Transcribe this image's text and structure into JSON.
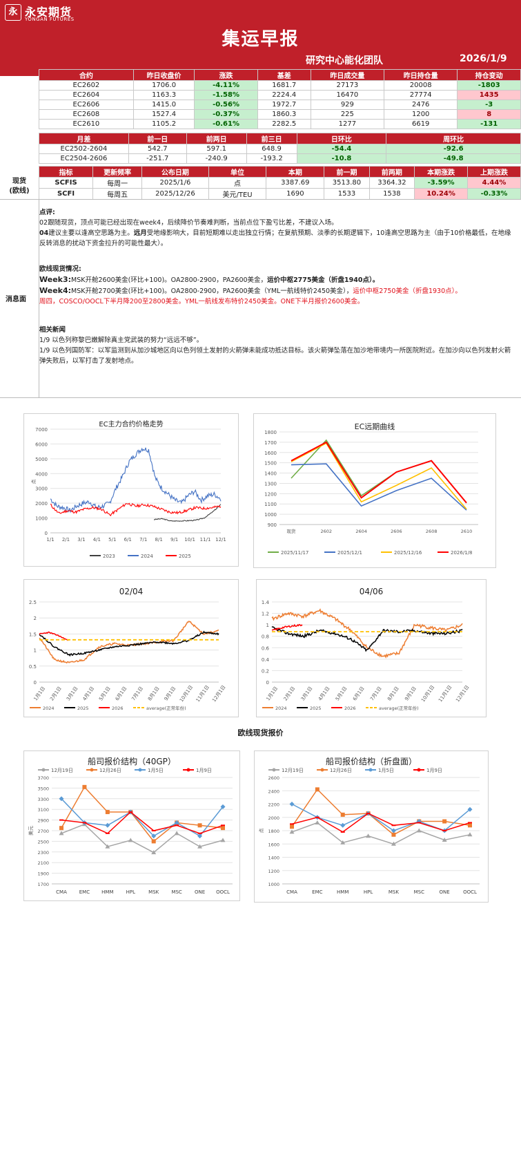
{
  "header": {
    "logo_char": "永",
    "brand_cn": "永安期货",
    "brand_en": "YONGAN FUTURES",
    "title": "集运早报",
    "team": "研究中心能化团队",
    "date": "2026/1/9"
  },
  "contracts": {
    "headers": [
      "合约",
      "昨日收盘价",
      "涨跌",
      "基差",
      "昨日成交量",
      "昨日持仓量",
      "持仓变动"
    ],
    "rows": [
      [
        "EC2602",
        "1706.0",
        "-4.11%",
        "1681.7",
        "27173",
        "20008",
        "-1803"
      ],
      [
        "EC2604",
        "1163.3",
        "-1.58%",
        "2224.4",
        "16470",
        "27774",
        "1435"
      ],
      [
        "EC2606",
        "1415.0",
        "-0.56%",
        "1972.7",
        "929",
        "2476",
        "-3"
      ],
      [
        "EC2608",
        "1527.4",
        "-0.37%",
        "1860.3",
        "225",
        "1200",
        "8"
      ],
      [
        "EC2610",
        "1105.2",
        "-0.61%",
        "2282.5",
        "1277",
        "6619",
        "-131"
      ]
    ]
  },
  "spreads": {
    "headers": [
      "月差",
      "前一日",
      "前两日",
      "前三日",
      "日环比",
      "周环比"
    ],
    "rows": [
      [
        "EC2502-2604",
        "542.7",
        "597.1",
        "648.9",
        "-54.4",
        "-92.6"
      ],
      [
        "EC2504-2606",
        "-251.7",
        "-240.9",
        "-193.2",
        "-10.8",
        "-49.8"
      ]
    ]
  },
  "spot": {
    "side1": "现货",
    "side2": "(欧线)",
    "headers": [
      "指标",
      "更新频率",
      "公布日期",
      "单位",
      "本期",
      "前一期",
      "前两期",
      "本期涨跌",
      "上期涨跌"
    ],
    "rows": [
      [
        "SCFIS",
        "每周一",
        "2025/1/6",
        "点",
        "3387.69",
        "3513.80",
        "3364.32",
        "-3.59%",
        "4.44%"
      ],
      [
        "SCFI",
        "每周五",
        "2025/12/26",
        "美元/TEU",
        "1690",
        "1533",
        "1538",
        "10.24%",
        "-0.33%"
      ]
    ]
  },
  "news": {
    "side": "消息面",
    "comment_title": "点评:",
    "c1": "02跟随现货，顶点可能已经出现在week4，后续降价节奏难判断，当前点位下盈亏比差，不建议入场。",
    "c2a": "04",
    "c2b": "建议主要以逢高空思路为主。",
    "c2c": "远月",
    "c2d": "受地缘影响大，目前短期难以走出独立行情；在复航预期、淡季的长期逻辑下，10逢高空思路为主（由于10价格最低，在地缘反转消息的扰动下资金拉升的可能性最大）。",
    "spot_title": "欧线现货情况:",
    "w3a": "Week3:",
    "w3b": "MSK开舱2600美金(环比+100)。OA2800-2900，PA2600美金，",
    "w3c": "运价中枢2775美金（折盘1940点）。",
    "w4a": "Week4:",
    "w4b": "MSK开舱2700美金(环比+100)。OA2800-2900，PA2600美金（YML一航线特价2450美金），",
    "w4c": "运价中枢2750美金（折盘1930点）。",
    "w4d": "周四，COSCO/OOCL下半月降200至2800美金。YML一航线发布特价2450美金。ONE下半月报价2600美金。",
    "rel_title": "相关新闻",
    "n1": "1/9 以色列称黎巴嫩解除真主党武装的努力“远远不够”。",
    "n2": "1/9 以色列国防军：以军监测到从加沙城地区向以色列领土发射的火箭弹未能成功抵达目标。该火箭弹坠落在加沙地带境内一所医院附近。在加沙向以色列发射火箭弹失败后，以军打击了发射地点。"
  },
  "section2": "欧线现货报价",
  "chart_data": [
    {
      "type": "line",
      "title": "EC主力合约价格走势",
      "ylabel": "点",
      "ylim": [
        0,
        7000
      ],
      "yticks": [
        "7000",
        "6000",
        "5000",
        "4000",
        "3000",
        "2000",
        "1000",
        "0"
      ],
      "xticks": [
        "1/1",
        "2/1",
        "3/1",
        "4/1",
        "5/1",
        "6/1",
        "7/1",
        "8/1",
        "9/1",
        "10/1",
        "11/1",
        "12/1"
      ],
      "series": [
        {
          "name": "2023",
          "color": "#404040"
        },
        {
          "name": "2024",
          "color": "#4472c4"
        },
        {
          "name": "2025",
          "color": "#ff0000"
        }
      ]
    },
    {
      "type": "line",
      "title": "EC远期曲线",
      "ylim": [
        900,
        1800
      ],
      "yticks": [
        "1800",
        "1700",
        "1600",
        "1500",
        "1400",
        "1300",
        "1200",
        "1100",
        "1000",
        "900"
      ],
      "categories": [
        "现货",
        "2602",
        "2604",
        "2606",
        "2608",
        "2610"
      ],
      "series": [
        {
          "name": "2025/11/17",
          "color": "#70ad47",
          "values": [
            1350,
            1720,
            1180,
            1410,
            1520,
            1110
          ]
        },
        {
          "name": "2025/12/1",
          "color": "#4472c4",
          "values": [
            1480,
            1490,
            1080,
            1230,
            1350,
            1040
          ]
        },
        {
          "name": "2025/12/16",
          "color": "#ffc000",
          "values": [
            1510,
            1690,
            1120,
            1280,
            1450,
            1050
          ]
        },
        {
          "name": "2026/1/8",
          "color": "#ff0000",
          "values": [
            1520,
            1700,
            1160,
            1410,
            1520,
            1110
          ]
        }
      ]
    },
    {
      "type": "line",
      "title": "02/04",
      "ylim": [
        0,
        2.5
      ],
      "yticks": [
        "2.5",
        "2",
        "1.5",
        "1",
        "0.5",
        "0"
      ],
      "xticks": [
        "1月1日",
        "2月1日",
        "3月1日",
        "4月1日",
        "5月1日",
        "6月1日",
        "7月1日",
        "8月1日",
        "9月1日",
        "10月1日",
        "11月1日",
        "12月1日"
      ],
      "series": [
        {
          "name": "2024",
          "color": "#ed7d31"
        },
        {
          "name": "2025",
          "color": "#000000"
        },
        {
          "name": "2026",
          "color": "#ff0000"
        },
        {
          "name": "average(正常年份)",
          "color": "#ffc000"
        }
      ]
    },
    {
      "type": "line",
      "title": "04/06",
      "ylim": [
        0,
        1.4
      ],
      "yticks": [
        "1.4",
        "1.2",
        "1",
        "0.8",
        "0.6",
        "0.4",
        "0.2",
        "0"
      ],
      "xticks": [
        "1月1日",
        "2月1日",
        "3月1日",
        "4月1日",
        "5月1日",
        "6月1日",
        "7月1日",
        "8月1日",
        "9月1日",
        "10月1日",
        "11月1日",
        "12月1日"
      ],
      "series": [
        {
          "name": "2024",
          "color": "#ed7d31"
        },
        {
          "name": "2025",
          "color": "#000000"
        },
        {
          "name": "2026",
          "color": "#ff0000"
        },
        {
          "name": "average(正常年份)",
          "color": "#ffc000"
        }
      ]
    },
    {
      "type": "line",
      "title": "船司报价结构（40GP）",
      "ylabel": "美元",
      "ylim": [
        1700,
        3700
      ],
      "yticks": [
        "3700",
        "3500",
        "3300",
        "3100",
        "2900",
        "2700",
        "2500",
        "2300",
        "2100",
        "1900",
        "1700"
      ],
      "categories": [
        "CMA",
        "EMC",
        "HMM",
        "HPL",
        "MSK",
        "MSC",
        "ONE",
        "OOCL"
      ],
      "series": [
        {
          "name": "12月19日",
          "color": "#a5a5a5",
          "values": [
            2650,
            2820,
            2400,
            2520,
            2290,
            2650,
            2400,
            2520
          ]
        },
        {
          "name": "12月26日",
          "color": "#ed7d31",
          "values": [
            2750,
            3520,
            3050,
            3050,
            2500,
            2850,
            2800,
            2750
          ]
        },
        {
          "name": "1月5日",
          "color": "#5b9bd5",
          "values": [
            3300,
            2850,
            2800,
            3050,
            2600,
            2850,
            2600,
            3150
          ]
        },
        {
          "name": "1月9日",
          "color": "#ff0000",
          "values": [
            2900,
            2850,
            2650,
            3050,
            2700,
            2800,
            2650,
            2800
          ]
        }
      ]
    },
    {
      "type": "line",
      "title": "船司报价结构（折盘面）",
      "ylabel": "点",
      "ylim": [
        1000,
        2600
      ],
      "yticks": [
        "2600",
        "2400",
        "2200",
        "2000",
        "1800",
        "1600",
        "1400",
        "1200",
        "1000"
      ],
      "categories": [
        "CMA",
        "EMC",
        "HMM",
        "HPL",
        "MSK",
        "MSC",
        "ONE",
        "OOCL"
      ],
      "series": [
        {
          "name": "12月19日",
          "color": "#a5a5a5",
          "values": [
            1780,
            1920,
            1620,
            1720,
            1600,
            1800,
            1660,
            1740
          ]
        },
        {
          "name": "12月26日",
          "color": "#ed7d31",
          "values": [
            1860,
            2420,
            2040,
            2060,
            1740,
            1940,
            1940,
            1880
          ]
        },
        {
          "name": "1月5日",
          "color": "#5b9bd5",
          "values": [
            2200,
            2000,
            1880,
            2060,
            1800,
            1940,
            1800,
            2120
          ]
        },
        {
          "name": "1月9日",
          "color": "#ff0000",
          "values": [
            1900,
            2000,
            1780,
            2060,
            1880,
            1920,
            1800,
            1920
          ]
        }
      ]
    }
  ]
}
